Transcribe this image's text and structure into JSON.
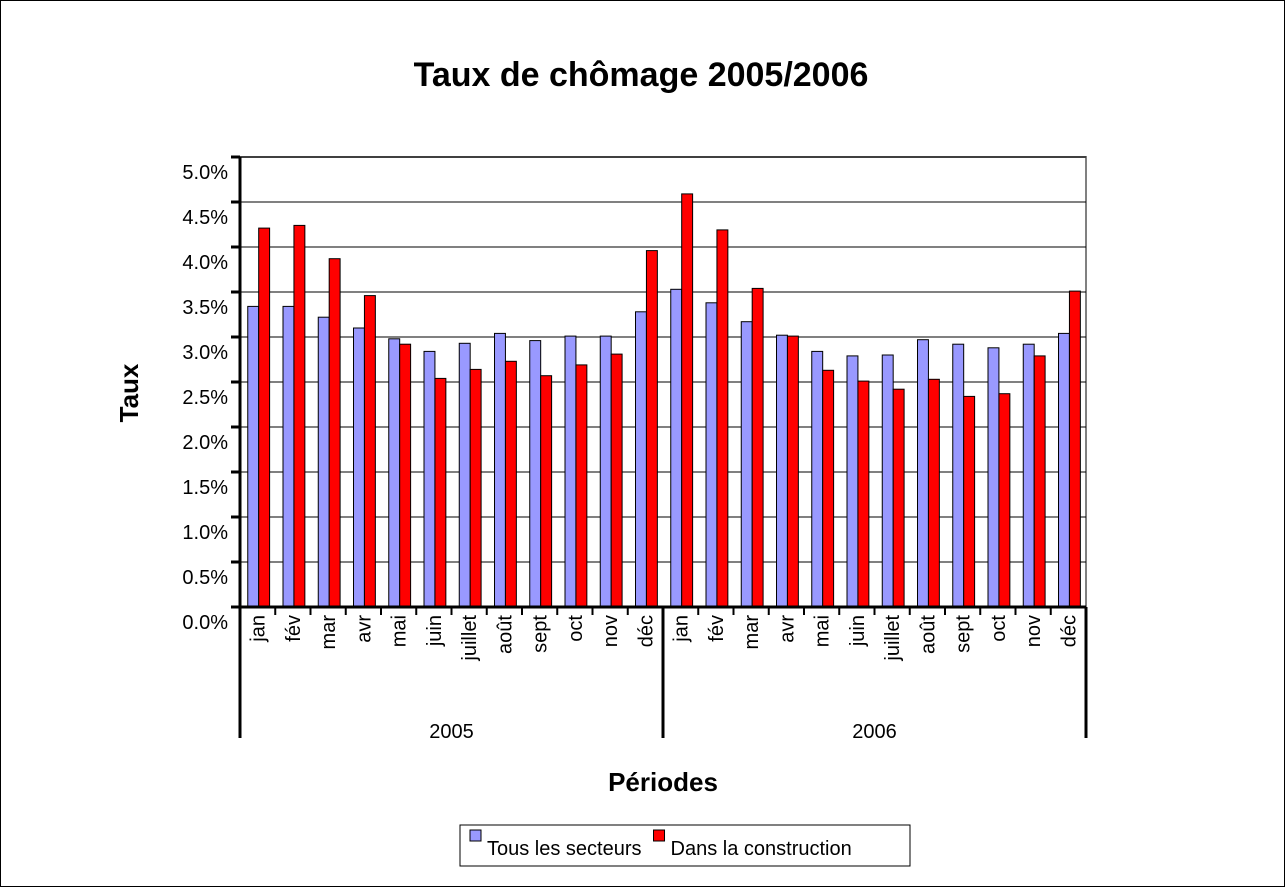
{
  "chart_data": {
    "type": "bar",
    "title": "Taux de chômage 2005/2006",
    "y_label": "Taux",
    "x_label": "Périodes",
    "categories": [
      "jan",
      "fév",
      "mar",
      "avr",
      "mai",
      "juin",
      "juillet",
      "août",
      "sept",
      "oct",
      "nov",
      "déc",
      "jan",
      "fév",
      "mar",
      "avr",
      "mai",
      "juin",
      "juillet",
      "août",
      "sept",
      "oct",
      "nov",
      "déc"
    ],
    "groups": [
      "2005",
      "2006"
    ],
    "series": [
      {
        "name": "Tous les secteurs",
        "color": "#9999ff",
        "values": [
          3.34,
          3.34,
          3.22,
          3.1,
          2.98,
          2.84,
          2.93,
          3.04,
          2.96,
          3.01,
          3.01,
          3.28,
          3.53,
          3.38,
          3.17,
          3.02,
          2.84,
          2.79,
          2.8,
          2.97,
          2.92,
          2.88,
          2.92,
          3.04
        ]
      },
      {
        "name": "Dans la construction",
        "color": "#ff0000",
        "values": [
          4.21,
          4.24,
          3.87,
          3.46,
          2.92,
          2.54,
          2.64,
          2.73,
          2.57,
          2.69,
          2.81,
          3.96,
          4.59,
          4.19,
          3.54,
          3.01,
          2.63,
          2.51,
          2.42,
          2.53,
          2.34,
          2.37,
          2.79,
          3.51
        ]
      }
    ],
    "ylim": [
      0,
      5
    ],
    "yticks": [
      {
        "value": 0,
        "label": "0.0%"
      },
      {
        "value": 0.5,
        "label": "0.5%"
      },
      {
        "value": 1,
        "label": "1.0%"
      },
      {
        "value": 1.5,
        "label": "1.5%"
      },
      {
        "value": 2,
        "label": "2.0%"
      },
      {
        "value": 2.5,
        "label": "2.5%"
      },
      {
        "value": 3,
        "label": "3.0%"
      },
      {
        "value": 3.5,
        "label": "3.5%"
      },
      {
        "value": 4,
        "label": "4.0%"
      },
      {
        "value": 4.5,
        "label": "4.5%"
      },
      {
        "value": 5,
        "label": "5.0%"
      }
    ],
    "grid": true,
    "legend": "bottom"
  }
}
